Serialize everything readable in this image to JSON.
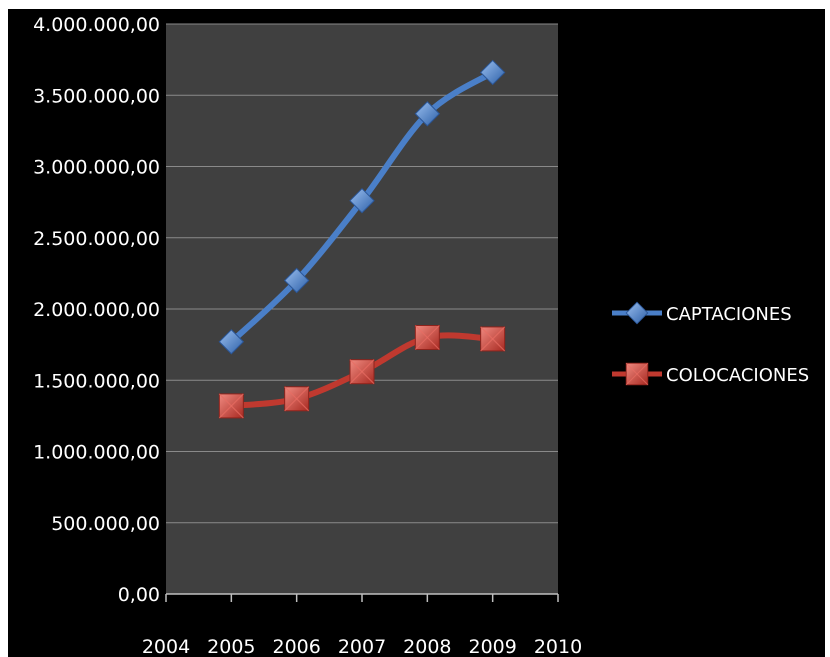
{
  "chart_data": {
    "type": "line",
    "title": "",
    "xlabel": "",
    "ylabel": "",
    "x": [
      2005,
      2006,
      2007,
      2008,
      2009
    ],
    "xlim": [
      2004,
      2010
    ],
    "x_ticks": [
      "2004",
      "2005",
      "2006",
      "2007",
      "2008",
      "2009",
      "2010"
    ],
    "ylim": [
      0,
      4000000
    ],
    "y_ticks": [
      0,
      500000,
      1000000,
      1500000,
      2000000,
      2500000,
      3000000,
      3500000,
      4000000
    ],
    "y_tick_labels": [
      "0,00",
      "500.000,00",
      "1.000.000,00",
      "1.500.000,00",
      "2.000.000,00",
      "2.500.000,00",
      "3.000.000,00",
      "3.500.000,00",
      "4.000.000,00"
    ],
    "grid": true,
    "legend_position": "right",
    "series": [
      {
        "name": "CAPTACIONES",
        "values": [
          1770000,
          2200000,
          2760000,
          3370000,
          3660000
        ],
        "color": "#4a7fc8",
        "marker": "diamond"
      },
      {
        "name": "COLOCACIONES",
        "values": [
          1320000,
          1370000,
          1560000,
          1800000,
          1790000
        ],
        "color": "#c0392f",
        "marker": "square"
      }
    ],
    "plot_background": "#404040",
    "background": "#000000"
  }
}
